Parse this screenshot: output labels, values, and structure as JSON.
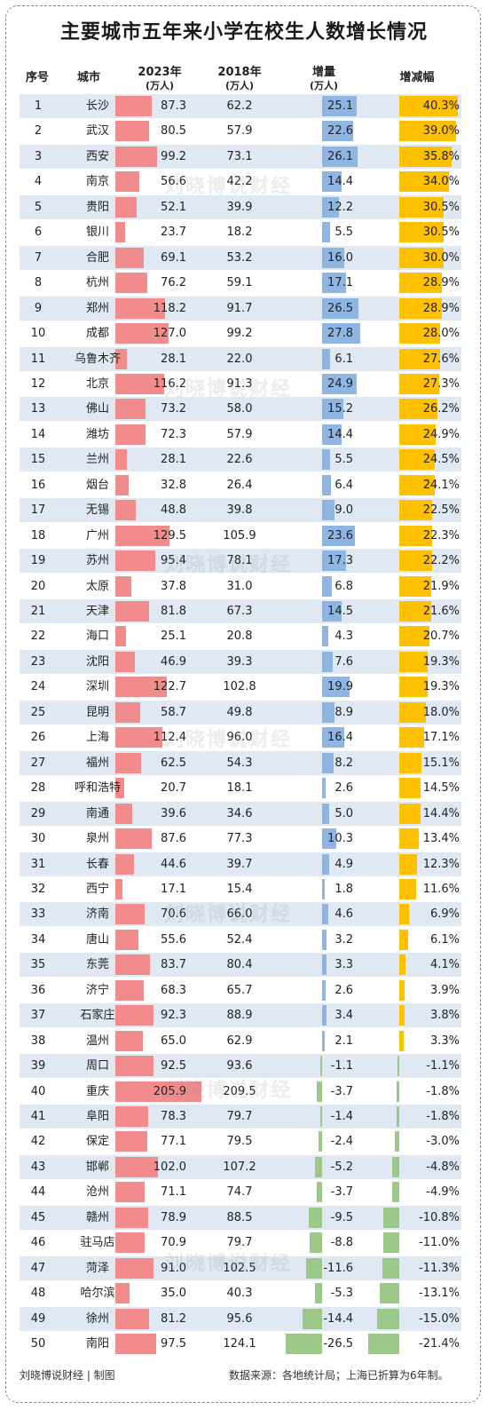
{
  "title": "主要城市五年来小学在校生人数增长情况",
  "headers": {
    "index": "序号",
    "city": "城市",
    "y2023": "2023年",
    "y2023_unit": "(万人)",
    "y2018": "2018年",
    "y2018_unit": "(万人)",
    "delta": "增量",
    "delta_unit": "(万人)",
    "rate": "增减幅"
  },
  "watermark": "刘晓博说财经",
  "footer": {
    "left": "刘晓博说财经 | 制图",
    "right": "数据来源：各地统计局；上海已折算为6年制。"
  },
  "colors": {
    "bar_2023": "#f28b8b",
    "bar_delta_pos": "#8fb6e3",
    "bar_delta_neg": "#9cc98a",
    "bar_rate_pos": "#ffc000",
    "bar_rate_neg": "#9cc98a",
    "row_alt": "#dfe8f3"
  },
  "chart_data": {
    "type": "table",
    "columns": [
      "序号",
      "城市",
      "2023年(万人)",
      "2018年(万人)",
      "增量(万人)",
      "增减幅"
    ],
    "rows": [
      {
        "n": "1",
        "city": "长沙",
        "v2023": "87.3",
        "v2018": "62.2",
        "delta": "25.1",
        "rate": "40.3%",
        "d": 25.1,
        "r": 40.3,
        "a": 87.3
      },
      {
        "n": "2",
        "city": "武汉",
        "v2023": "80.5",
        "v2018": "57.9",
        "delta": "22.6",
        "rate": "39.0%",
        "d": 22.6,
        "r": 39.0,
        "a": 80.5
      },
      {
        "n": "3",
        "city": "西安",
        "v2023": "99.2",
        "v2018": "73.1",
        "delta": "26.1",
        "rate": "35.8%",
        "d": 26.1,
        "r": 35.8,
        "a": 99.2
      },
      {
        "n": "4",
        "city": "南京",
        "v2023": "56.6",
        "v2018": "42.2",
        "delta": "14.4",
        "rate": "34.0%",
        "d": 14.4,
        "r": 34.0,
        "a": 56.6
      },
      {
        "n": "5",
        "city": "贵阳",
        "v2023": "52.1",
        "v2018": "39.9",
        "delta": "12.2",
        "rate": "30.5%",
        "d": 12.2,
        "r": 30.5,
        "a": 52.1
      },
      {
        "n": "6",
        "city": "银川",
        "v2023": "23.7",
        "v2018": "18.2",
        "delta": "5.5",
        "rate": "30.5%",
        "d": 5.5,
        "r": 30.5,
        "a": 23.7
      },
      {
        "n": "7",
        "city": "合肥",
        "v2023": "69.1",
        "v2018": "53.2",
        "delta": "16.0",
        "rate": "30.0%",
        "d": 16.0,
        "r": 30.0,
        "a": 69.1
      },
      {
        "n": "8",
        "city": "杭州",
        "v2023": "76.2",
        "v2018": "59.1",
        "delta": "17.1",
        "rate": "28.9%",
        "d": 17.1,
        "r": 28.9,
        "a": 76.2
      },
      {
        "n": "9",
        "city": "郑州",
        "v2023": "118.2",
        "v2018": "91.7",
        "delta": "26.5",
        "rate": "28.9%",
        "d": 26.5,
        "r": 28.9,
        "a": 118.2
      },
      {
        "n": "10",
        "city": "成都",
        "v2023": "127.0",
        "v2018": "99.2",
        "delta": "27.8",
        "rate": "28.0%",
        "d": 27.8,
        "r": 28.0,
        "a": 127.0
      },
      {
        "n": "11",
        "city": "乌鲁木齐",
        "v2023": "28.1",
        "v2018": "22.0",
        "delta": "6.1",
        "rate": "27.6%",
        "d": 6.1,
        "r": 27.6,
        "a": 28.1
      },
      {
        "n": "12",
        "city": "北京",
        "v2023": "116.2",
        "v2018": "91.3",
        "delta": "24.9",
        "rate": "27.3%",
        "d": 24.9,
        "r": 27.3,
        "a": 116.2
      },
      {
        "n": "13",
        "city": "佛山",
        "v2023": "73.2",
        "v2018": "58.0",
        "delta": "15.2",
        "rate": "26.2%",
        "d": 15.2,
        "r": 26.2,
        "a": 73.2
      },
      {
        "n": "14",
        "city": "潍坊",
        "v2023": "72.3",
        "v2018": "57.9",
        "delta": "14.4",
        "rate": "24.9%",
        "d": 14.4,
        "r": 24.9,
        "a": 72.3
      },
      {
        "n": "15",
        "city": "兰州",
        "v2023": "28.1",
        "v2018": "22.6",
        "delta": "5.5",
        "rate": "24.5%",
        "d": 5.5,
        "r": 24.5,
        "a": 28.1
      },
      {
        "n": "16",
        "city": "烟台",
        "v2023": "32.8",
        "v2018": "26.4",
        "delta": "6.4",
        "rate": "24.1%",
        "d": 6.4,
        "r": 24.1,
        "a": 32.8
      },
      {
        "n": "17",
        "city": "无锡",
        "v2023": "48.8",
        "v2018": "39.8",
        "delta": "9.0",
        "rate": "22.5%",
        "d": 9.0,
        "r": 22.5,
        "a": 48.8
      },
      {
        "n": "18",
        "city": "广州",
        "v2023": "129.5",
        "v2018": "105.9",
        "delta": "23.6",
        "rate": "22.3%",
        "d": 23.6,
        "r": 22.3,
        "a": 129.5
      },
      {
        "n": "19",
        "city": "苏州",
        "v2023": "95.4",
        "v2018": "78.1",
        "delta": "17.3",
        "rate": "22.2%",
        "d": 17.3,
        "r": 22.2,
        "a": 95.4
      },
      {
        "n": "20",
        "city": "太原",
        "v2023": "37.8",
        "v2018": "31.0",
        "delta": "6.8",
        "rate": "21.9%",
        "d": 6.8,
        "r": 21.9,
        "a": 37.8
      },
      {
        "n": "21",
        "city": "天津",
        "v2023": "81.8",
        "v2018": "67.3",
        "delta": "14.5",
        "rate": "21.6%",
        "d": 14.5,
        "r": 21.6,
        "a": 81.8
      },
      {
        "n": "22",
        "city": "海口",
        "v2023": "25.1",
        "v2018": "20.8",
        "delta": "4.3",
        "rate": "20.7%",
        "d": 4.3,
        "r": 20.7,
        "a": 25.1
      },
      {
        "n": "23",
        "city": "沈阳",
        "v2023": "46.9",
        "v2018": "39.3",
        "delta": "7.6",
        "rate": "19.3%",
        "d": 7.6,
        "r": 19.3,
        "a": 46.9
      },
      {
        "n": "24",
        "city": "深圳",
        "v2023": "122.7",
        "v2018": "102.8",
        "delta": "19.9",
        "rate": "19.3%",
        "d": 19.9,
        "r": 19.3,
        "a": 122.7
      },
      {
        "n": "25",
        "city": "昆明",
        "v2023": "58.7",
        "v2018": "49.8",
        "delta": "8.9",
        "rate": "18.0%",
        "d": 8.9,
        "r": 18.0,
        "a": 58.7
      },
      {
        "n": "26",
        "city": "上海",
        "v2023": "112.4",
        "v2018": "96.0",
        "delta": "16.4",
        "rate": "17.1%",
        "d": 16.4,
        "r": 17.1,
        "a": 112.4
      },
      {
        "n": "27",
        "city": "福州",
        "v2023": "62.5",
        "v2018": "54.3",
        "delta": "8.2",
        "rate": "15.1%",
        "d": 8.2,
        "r": 15.1,
        "a": 62.5
      },
      {
        "n": "28",
        "city": "呼和浩特",
        "v2023": "20.7",
        "v2018": "18.1",
        "delta": "2.6",
        "rate": "14.5%",
        "d": 2.6,
        "r": 14.5,
        "a": 20.7
      },
      {
        "n": "29",
        "city": "南通",
        "v2023": "39.6",
        "v2018": "34.6",
        "delta": "5.0",
        "rate": "14.4%",
        "d": 5.0,
        "r": 14.4,
        "a": 39.6
      },
      {
        "n": "30",
        "city": "泉州",
        "v2023": "87.6",
        "v2018": "77.3",
        "delta": "10.3",
        "rate": "13.4%",
        "d": 10.3,
        "r": 13.4,
        "a": 87.6
      },
      {
        "n": "31",
        "city": "长春",
        "v2023": "44.6",
        "v2018": "39.7",
        "delta": "4.9",
        "rate": "12.3%",
        "d": 4.9,
        "r": 12.3,
        "a": 44.6
      },
      {
        "n": "32",
        "city": "西宁",
        "v2023": "17.1",
        "v2018": "15.4",
        "delta": "1.8",
        "rate": "11.6%",
        "d": 1.8,
        "r": 11.6,
        "a": 17.1
      },
      {
        "n": "33",
        "city": "济南",
        "v2023": "70.6",
        "v2018": "66.0",
        "delta": "4.6",
        "rate": "6.9%",
        "d": 4.6,
        "r": 6.9,
        "a": 70.6
      },
      {
        "n": "34",
        "city": "唐山",
        "v2023": "55.6",
        "v2018": "52.4",
        "delta": "3.2",
        "rate": "6.1%",
        "d": 3.2,
        "r": 6.1,
        "a": 55.6
      },
      {
        "n": "35",
        "city": "东莞",
        "v2023": "83.7",
        "v2018": "80.4",
        "delta": "3.3",
        "rate": "4.1%",
        "d": 3.3,
        "r": 4.1,
        "a": 83.7
      },
      {
        "n": "36",
        "city": "济宁",
        "v2023": "68.3",
        "v2018": "65.7",
        "delta": "2.6",
        "rate": "3.9%",
        "d": 2.6,
        "r": 3.9,
        "a": 68.3
      },
      {
        "n": "37",
        "city": "石家庄",
        "v2023": "92.3",
        "v2018": "88.9",
        "delta": "3.4",
        "rate": "3.8%",
        "d": 3.4,
        "r": 3.8,
        "a": 92.3
      },
      {
        "n": "38",
        "city": "温州",
        "v2023": "65.0",
        "v2018": "62.9",
        "delta": "2.1",
        "rate": "3.3%",
        "d": 2.1,
        "r": 3.3,
        "a": 65.0
      },
      {
        "n": "39",
        "city": "周口",
        "v2023": "92.5",
        "v2018": "93.6",
        "delta": "-1.1",
        "rate": "-1.1%",
        "d": -1.1,
        "r": -1.1,
        "a": 92.5
      },
      {
        "n": "40",
        "city": "重庆",
        "v2023": "205.9",
        "v2018": "209.5",
        "delta": "-3.7",
        "rate": "-1.8%",
        "d": -3.7,
        "r": -1.8,
        "a": 205.9
      },
      {
        "n": "41",
        "city": "阜阳",
        "v2023": "78.3",
        "v2018": "79.7",
        "delta": "-1.4",
        "rate": "-1.8%",
        "d": -1.4,
        "r": -1.8,
        "a": 78.3
      },
      {
        "n": "42",
        "city": "保定",
        "v2023": "77.1",
        "v2018": "79.5",
        "delta": "-2.4",
        "rate": "-3.0%",
        "d": -2.4,
        "r": -3.0,
        "a": 77.1
      },
      {
        "n": "43",
        "city": "邯郸",
        "v2023": "102.0",
        "v2018": "107.2",
        "delta": "-5.2",
        "rate": "-4.8%",
        "d": -5.2,
        "r": -4.8,
        "a": 102.0
      },
      {
        "n": "44",
        "city": "沧州",
        "v2023": "71.1",
        "v2018": "74.7",
        "delta": "-3.7",
        "rate": "-4.9%",
        "d": -3.7,
        "r": -4.9,
        "a": 71.1
      },
      {
        "n": "45",
        "city": "赣州",
        "v2023": "78.9",
        "v2018": "88.5",
        "delta": "-9.5",
        "rate": "-10.8%",
        "d": -9.5,
        "r": -10.8,
        "a": 78.9
      },
      {
        "n": "46",
        "city": "驻马店",
        "v2023": "70.9",
        "v2018": "79.7",
        "delta": "-8.8",
        "rate": "-11.0%",
        "d": -8.8,
        "r": -11.0,
        "a": 70.9
      },
      {
        "n": "47",
        "city": "菏泽",
        "v2023": "91.0",
        "v2018": "102.5",
        "delta": "-11.6",
        "rate": "-11.3%",
        "d": -11.6,
        "r": -11.3,
        "a": 91.0
      },
      {
        "n": "48",
        "city": "哈尔滨",
        "v2023": "35.0",
        "v2018": "40.3",
        "delta": "-5.3",
        "rate": "-13.1%",
        "d": -5.3,
        "r": -13.1,
        "a": 35.0
      },
      {
        "n": "49",
        "city": "徐州",
        "v2023": "81.2",
        "v2018": "95.6",
        "delta": "-14.4",
        "rate": "-15.0%",
        "d": -14.4,
        "r": -15.0,
        "a": 81.2
      },
      {
        "n": "50",
        "city": "南阳",
        "v2023": "97.5",
        "v2018": "124.1",
        "delta": "-26.5",
        "rate": "-21.4%",
        "d": -26.5,
        "r": -21.4,
        "a": 97.5
      }
    ]
  }
}
